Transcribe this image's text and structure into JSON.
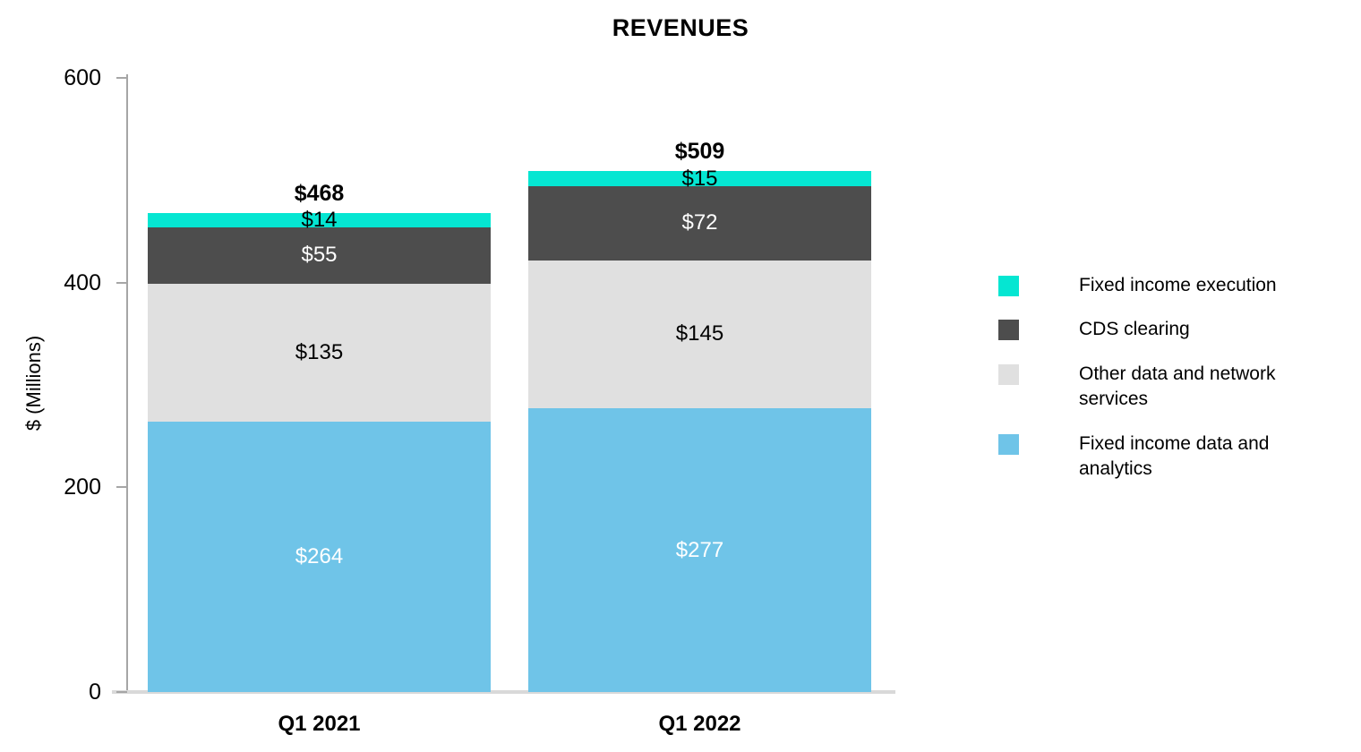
{
  "chart_data": {
    "type": "bar",
    "stacked": true,
    "title": "REVENUES",
    "ylabel": "$ (Millions)",
    "xlabel": "",
    "ylim": [
      0,
      600
    ],
    "yticks": [
      0,
      200,
      400,
      600
    ],
    "grid": false,
    "legend_position": "right",
    "categories": [
      "Q1 2021",
      "Q1 2022"
    ],
    "series": [
      {
        "name": "Fixed income data and analytics",
        "color": "#6FC4E8",
        "label_color": "#FFFFFF",
        "values": [
          264,
          277
        ],
        "labels": [
          "$264",
          "$277"
        ]
      },
      {
        "name": "Other data and network services",
        "color": "#E0E0E0",
        "label_color": "#000000",
        "values": [
          135,
          145
        ],
        "labels": [
          "$135",
          "$145"
        ]
      },
      {
        "name": "CDS clearing",
        "color": "#4D4D4D",
        "label_color": "#FFFFFF",
        "values": [
          55,
          72
        ],
        "labels": [
          "$55",
          "$72"
        ]
      },
      {
        "name": "Fixed income execution",
        "color": "#05E6D2",
        "label_color": "#000000",
        "values": [
          14,
          15
        ],
        "labels": [
          "$14",
          "$15"
        ]
      }
    ],
    "totals": [
      468,
      509
    ],
    "totals_labels": [
      "$468",
      "$509"
    ],
    "legend": [
      {
        "label": "Fixed income execution",
        "color": "#05E6D2"
      },
      {
        "label": "CDS clearing",
        "color": "#4D4D4D"
      },
      {
        "label": "Other data and network services",
        "color": "#E0E0E0"
      },
      {
        "label": "Fixed income data and analytics",
        "color": "#6FC4E8"
      }
    ]
  }
}
